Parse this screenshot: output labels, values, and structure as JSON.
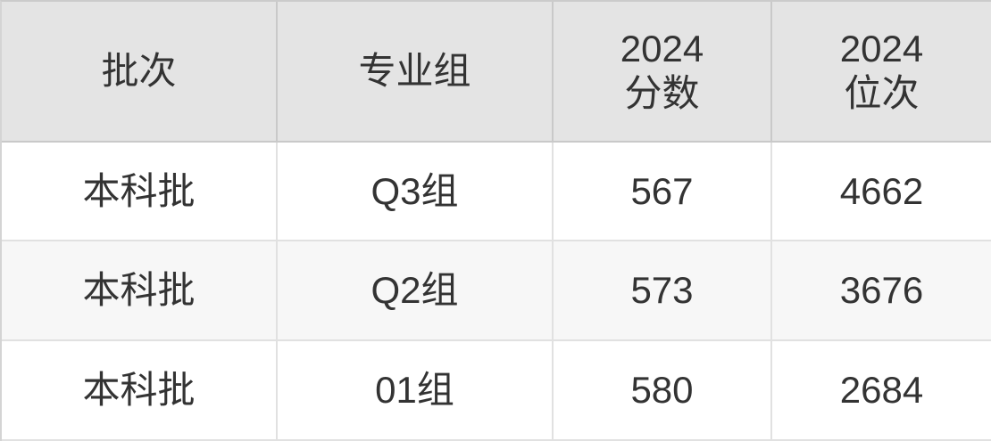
{
  "chart_data": {
    "type": "table",
    "columns": [
      "批次",
      "专业组",
      "2024分数",
      "2024位次"
    ],
    "rows": [
      [
        "本科批",
        "Q3组",
        "567",
        "4662"
      ],
      [
        "本科批",
        "Q2组",
        "573",
        "3676"
      ],
      [
        "本科批",
        "01组",
        "580",
        "2684"
      ]
    ]
  },
  "header_lines": [
    [
      "批次"
    ],
    [
      "专业组"
    ],
    [
      "2024",
      "分数"
    ],
    [
      "2024",
      "位次"
    ]
  ],
  "colors": {
    "header_bg": "#e4e4e4",
    "row_stripe_bg": "#f7f7f7",
    "row_bg": "#ffffff",
    "header_border": "#c9c9c9",
    "body_border": "#e1e1e1",
    "text": "#333333"
  }
}
